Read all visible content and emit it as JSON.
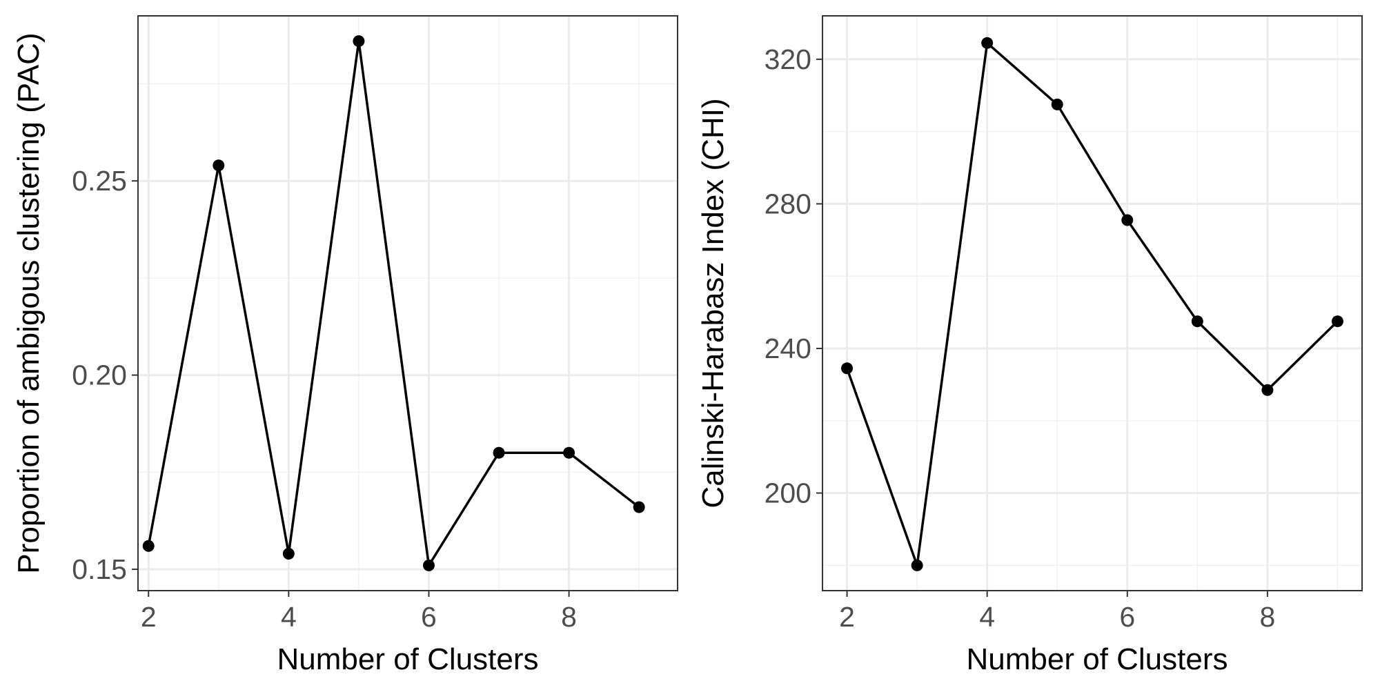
{
  "chart_data": [
    {
      "type": "line",
      "xlabel": "Number of Clusters",
      "ylabel": "Proportion of ambigous clustering (PAC)",
      "x": [
        2,
        3,
        4,
        5,
        6,
        7,
        8,
        9
      ],
      "series": [
        {
          "values": [
            0.156,
            0.254,
            0.154,
            0.286,
            0.151,
            0.18,
            0.18,
            0.166
          ]
        }
      ],
      "xlim": [
        1.85,
        9.55
      ],
      "ylim": [
        0.1445,
        0.2925
      ],
      "xticks": [
        2,
        4,
        6,
        8
      ],
      "xtick_labels": [
        "2",
        "4",
        "6",
        "8"
      ],
      "xminor": [
        3,
        5,
        7,
        9
      ],
      "yticks": [
        0.15,
        0.2,
        0.25
      ],
      "ytick_labels": [
        "0.15",
        "0.20",
        "0.25"
      ],
      "yminor": [
        0.175,
        0.225,
        0.275
      ],
      "grid": true,
      "marker": "circle",
      "line_color": "#000000"
    },
    {
      "type": "line",
      "xlabel": "Number of Clusters",
      "ylabel": "Calinski-Harabasz Index (CHI)",
      "x": [
        2,
        3,
        4,
        5,
        6,
        7,
        8,
        9
      ],
      "series": [
        {
          "values": [
            234.5,
            180,
            324.5,
            307.5,
            275.5,
            247.5,
            228.5,
            247.5
          ]
        }
      ],
      "xlim": [
        1.65,
        9.35
      ],
      "ylim": [
        173,
        332
      ],
      "xticks": [
        2,
        4,
        6,
        8
      ],
      "xtick_labels": [
        "2",
        "4",
        "6",
        "8"
      ],
      "xminor": [
        3,
        5,
        7,
        9
      ],
      "yticks": [
        200,
        240,
        280,
        320
      ],
      "ytick_labels": [
        "200",
        "240",
        "280",
        "320"
      ],
      "yminor": [
        180,
        220,
        260,
        300
      ],
      "grid": true,
      "marker": "circle",
      "line_color": "#000000"
    }
  ]
}
